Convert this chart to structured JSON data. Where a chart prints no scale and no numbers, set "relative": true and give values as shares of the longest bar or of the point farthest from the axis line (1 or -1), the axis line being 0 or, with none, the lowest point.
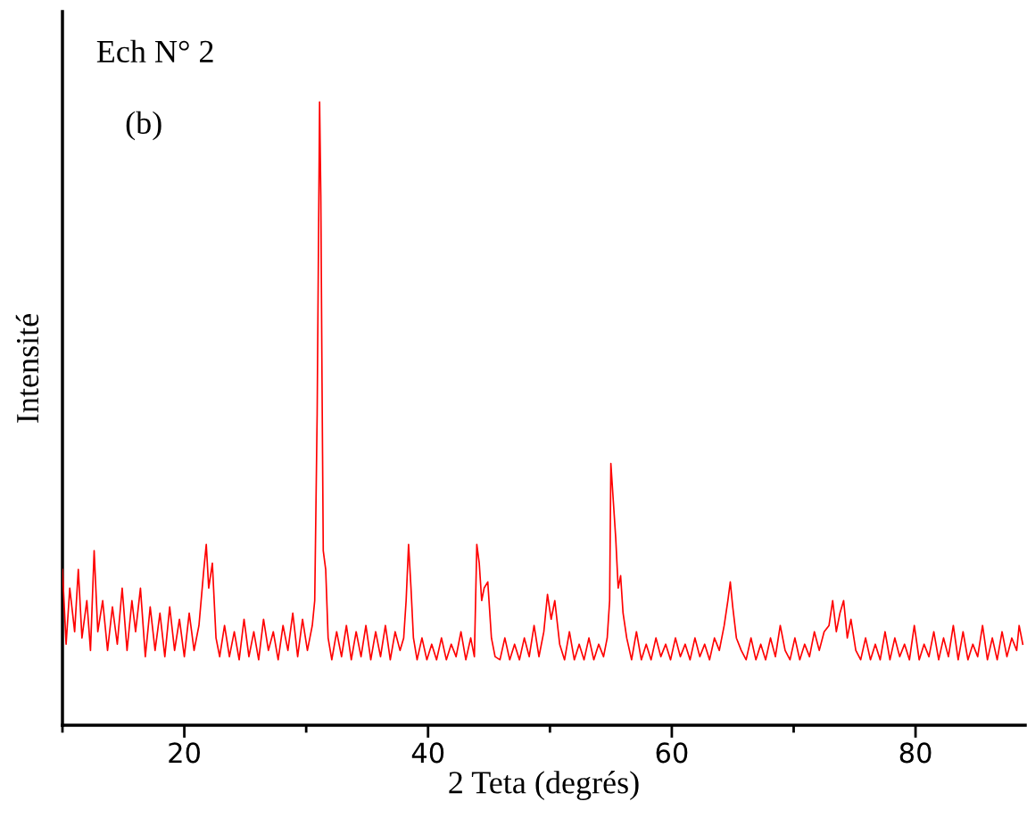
{
  "chart_data": {
    "type": "line",
    "relative": true,
    "xlabel": "2 Teta (degrés)",
    "ylabel": "Intensité",
    "annotations": [
      "Ech N° 2",
      "(b)"
    ],
    "xlim": [
      10,
      89
    ],
    "xticks": [
      {
        "value": 10,
        "label": null
      },
      20,
      {
        "value": 30,
        "label": null
      },
      40,
      {
        "value": 50,
        "label": null
      },
      60,
      {
        "value": 70,
        "label": null
      },
      80
    ],
    "grid": false,
    "legend": false,
    "marker": "none",
    "line_style": "solid",
    "series": [
      {
        "color": "#ff0000",
        "x": [
          10.0,
          10.3,
          10.6,
          11.0,
          11.3,
          11.6,
          12.0,
          12.3,
          12.6,
          12.9,
          13.3,
          13.7,
          14.1,
          14.5,
          14.9,
          15.3,
          15.7,
          16.0,
          16.4,
          16.8,
          17.2,
          17.6,
          18.0,
          18.4,
          18.8,
          19.2,
          19.6,
          20.0,
          20.4,
          20.8,
          21.2,
          21.6,
          21.8,
          22.0,
          22.3,
          22.6,
          22.9,
          23.3,
          23.7,
          24.1,
          24.5,
          24.9,
          25.3,
          25.7,
          26.1,
          26.5,
          26.9,
          27.3,
          27.7,
          28.1,
          28.5,
          28.9,
          29.3,
          29.7,
          30.1,
          30.5,
          30.7,
          30.9,
          31.0,
          31.1,
          31.2,
          31.3,
          31.4,
          31.6,
          31.8,
          32.1,
          32.5,
          32.9,
          33.3,
          33.7,
          34.1,
          34.5,
          34.9,
          35.3,
          35.7,
          36.1,
          36.5,
          36.9,
          37.3,
          37.7,
          38.0,
          38.2,
          38.4,
          38.6,
          38.8,
          39.1,
          39.5,
          39.9,
          40.3,
          40.7,
          41.1,
          41.5,
          41.9,
          42.3,
          42.7,
          43.1,
          43.5,
          43.8,
          44.0,
          44.2,
          44.4,
          44.6,
          44.9,
          45.2,
          45.5,
          45.9,
          46.3,
          46.7,
          47.1,
          47.5,
          47.9,
          48.3,
          48.7,
          49.1,
          49.5,
          49.8,
          50.1,
          50.4,
          50.8,
          51.2,
          51.6,
          52.0,
          52.4,
          52.8,
          53.2,
          53.6,
          54.0,
          54.4,
          54.7,
          54.9,
          55.0,
          55.2,
          55.4,
          55.6,
          55.8,
          56.0,
          56.3,
          56.7,
          57.1,
          57.5,
          57.9,
          58.3,
          58.7,
          59.1,
          59.5,
          59.9,
          60.3,
          60.7,
          61.1,
          61.5,
          61.9,
          62.3,
          62.7,
          63.1,
          63.5,
          63.9,
          64.3,
          64.6,
          64.8,
          65.0,
          65.3,
          65.7,
          66.1,
          66.5,
          66.9,
          67.3,
          67.7,
          68.1,
          68.5,
          68.9,
          69.3,
          69.7,
          70.1,
          70.5,
          70.9,
          71.3,
          71.7,
          72.1,
          72.5,
          72.9,
          73.2,
          73.5,
          73.8,
          74.1,
          74.4,
          74.7,
          75.1,
          75.5,
          75.9,
          76.3,
          76.7,
          77.1,
          77.5,
          77.9,
          78.3,
          78.7,
          79.1,
          79.5,
          79.9,
          80.3,
          80.7,
          81.1,
          81.5,
          81.9,
          82.3,
          82.7,
          83.1,
          83.5,
          83.9,
          84.3,
          84.7,
          85.1,
          85.5,
          85.9,
          86.3,
          86.7,
          87.1,
          87.5,
          87.9,
          88.3,
          88.5,
          88.8
        ],
        "values": [
          0.25,
          0.13,
          0.22,
          0.15,
          0.25,
          0.14,
          0.2,
          0.12,
          0.28,
          0.15,
          0.2,
          0.12,
          0.19,
          0.13,
          0.22,
          0.12,
          0.2,
          0.15,
          0.22,
          0.11,
          0.19,
          0.12,
          0.18,
          0.11,
          0.19,
          0.12,
          0.17,
          0.11,
          0.18,
          0.12,
          0.16,
          0.25,
          0.29,
          0.22,
          0.26,
          0.14,
          0.11,
          0.16,
          0.11,
          0.15,
          0.105,
          0.17,
          0.11,
          0.15,
          0.105,
          0.17,
          0.12,
          0.15,
          0.105,
          0.16,
          0.12,
          0.18,
          0.11,
          0.17,
          0.12,
          0.16,
          0.2,
          0.5,
          0.75,
          1.0,
          0.85,
          0.55,
          0.28,
          0.25,
          0.14,
          0.105,
          0.15,
          0.11,
          0.16,
          0.105,
          0.15,
          0.11,
          0.16,
          0.105,
          0.15,
          0.11,
          0.16,
          0.105,
          0.15,
          0.12,
          0.14,
          0.2,
          0.29,
          0.22,
          0.14,
          0.105,
          0.14,
          0.105,
          0.13,
          0.105,
          0.14,
          0.105,
          0.13,
          0.11,
          0.15,
          0.105,
          0.14,
          0.11,
          0.29,
          0.26,
          0.2,
          0.22,
          0.23,
          0.14,
          0.11,
          0.105,
          0.14,
          0.105,
          0.13,
          0.105,
          0.14,
          0.11,
          0.16,
          0.11,
          0.15,
          0.21,
          0.17,
          0.2,
          0.13,
          0.105,
          0.15,
          0.105,
          0.13,
          0.105,
          0.14,
          0.105,
          0.13,
          0.11,
          0.14,
          0.2,
          0.42,
          0.36,
          0.3,
          0.22,
          0.24,
          0.18,
          0.14,
          0.105,
          0.15,
          0.105,
          0.13,
          0.105,
          0.14,
          0.11,
          0.13,
          0.105,
          0.14,
          0.11,
          0.13,
          0.105,
          0.14,
          0.11,
          0.13,
          0.105,
          0.14,
          0.12,
          0.16,
          0.2,
          0.23,
          0.19,
          0.14,
          0.12,
          0.105,
          0.14,
          0.105,
          0.13,
          0.105,
          0.14,
          0.11,
          0.16,
          0.12,
          0.105,
          0.14,
          0.105,
          0.13,
          0.11,
          0.15,
          0.12,
          0.15,
          0.16,
          0.2,
          0.15,
          0.18,
          0.2,
          0.14,
          0.17,
          0.12,
          0.105,
          0.14,
          0.105,
          0.13,
          0.105,
          0.15,
          0.105,
          0.14,
          0.11,
          0.13,
          0.105,
          0.16,
          0.105,
          0.13,
          0.11,
          0.15,
          0.105,
          0.14,
          0.11,
          0.16,
          0.105,
          0.15,
          0.105,
          0.13,
          0.11,
          0.16,
          0.105,
          0.14,
          0.105,
          0.15,
          0.11,
          0.14,
          0.12,
          0.16,
          0.13
        ]
      }
    ]
  }
}
